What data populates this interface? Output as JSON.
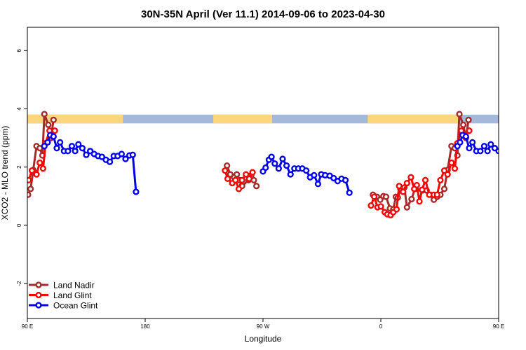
{
  "chart_data": {
    "type": "line",
    "title": "30N-35N April (Ver 11.1)   2014-09-06 to 2023-04-30",
    "xlabel": "Longitude",
    "ylabel": "XCO2 - MLO trend (ppm)",
    "xlim": [
      90,
      450
    ],
    "ylim": [
      -3.2,
      6.8
    ],
    "x_ticks": [
      {
        "value": 90,
        "label": "90 E"
      },
      {
        "value": 180,
        "label": "180"
      },
      {
        "value": 270,
        "label": "90 W"
      },
      {
        "value": 360,
        "label": "0"
      },
      {
        "value": 450,
        "label": "90 E"
      },
      {
        "value": 540,
        "label": "180"
      }
    ],
    "y_ticks": [
      {
        "value": -2,
        "label": "-2"
      },
      {
        "value": 0,
        "label": "0"
      },
      {
        "value": 2,
        "label": "2"
      },
      {
        "value": 4,
        "label": "4"
      },
      {
        "value": 6,
        "label": "6"
      }
    ],
    "grid": false,
    "legend_position": "bottom-left",
    "land_ocean_bar": {
      "y_range": [
        3.5,
        3.8
      ],
      "ocean_color": "#a4b9d9",
      "land_color": "#fcd57d",
      "land_segments": [
        [
          90,
          163
        ],
        [
          232,
          277
        ],
        [
          350,
          420
        ],
        [
          450,
          523
        ]
      ]
    },
    "series": [
      {
        "name": "Land Nadir",
        "color": "#a52a2a",
        "points": [
          [
            90.5,
            1.05
          ],
          [
            92.5,
            1.25
          ],
          [
            94.5,
            1.9
          ],
          [
            97,
            2.72
          ],
          [
            99.5,
            2.65
          ],
          [
            101.5,
            2.4
          ],
          [
            103,
            3.82
          ],
          [
            106,
            3.45
          ],
          [
            108,
            3.0
          ],
          [
            110,
            3.62
          ],
          [
            242.5,
            2.05
          ],
          [
            245,
            1.75
          ],
          [
            248,
            1.65
          ],
          [
            250,
            1.75
          ],
          [
            252,
            1.55
          ],
          [
            254,
            1.35
          ],
          [
            259,
            1.55
          ],
          [
            261,
            1.72
          ],
          [
            263,
            1.55
          ],
          [
            265,
            1.35
          ],
          [
            354,
            1.05
          ],
          [
            357,
            0.98
          ],
          [
            359.5,
            0.88
          ],
          [
            362,
            1.0
          ],
          [
            364,
            0.98
          ],
          [
            367,
            0.58
          ],
          [
            369.5,
            0.55
          ],
          [
            371.5,
            0.98
          ],
          [
            373,
            0.95
          ],
          [
            375,
            1.25
          ],
          [
            378,
            1.3
          ],
          [
            380,
            0.62
          ],
          [
            383.5,
            0.9
          ],
          [
            386,
            1.25
          ],
          [
            392,
            1.2
          ],
          [
            395,
            1.2
          ],
          [
            398,
            1.05
          ],
          [
            400.5,
            0.88
          ],
          [
            403,
            0.98
          ],
          [
            405.5,
            1.05
          ],
          [
            408.5,
            1.25
          ],
          [
            411,
            1.9
          ],
          [
            414,
            2.72
          ],
          [
            416.5,
            2.65
          ],
          [
            418.5,
            2.4
          ],
          [
            420,
            3.82
          ],
          [
            423,
            3.45
          ],
          [
            425,
            3.0
          ],
          [
            427,
            3.62
          ]
        ]
      },
      {
        "name": "Land Glint",
        "color": "#ff0000",
        "points": [
          [
            91,
            1.55
          ],
          [
            93.5,
            1.88
          ],
          [
            97,
            1.75
          ],
          [
            99.5,
            2.15
          ],
          [
            102,
            1.95
          ],
          [
            104,
            2.82
          ],
          [
            107,
            3.25
          ],
          [
            109.5,
            3.05
          ],
          [
            111,
            3.25
          ],
          [
            241,
            1.88
          ],
          [
            243,
            1.6
          ],
          [
            246.5,
            1.45
          ],
          [
            249,
            1.55
          ],
          [
            251.5,
            1.25
          ],
          [
            254,
            1.55
          ],
          [
            257,
            1.75
          ],
          [
            259.5,
            1.6
          ],
          [
            262,
            1.82
          ],
          [
            352.5,
            0.68
          ],
          [
            355,
            0.98
          ],
          [
            357.5,
            0.62
          ],
          [
            360,
            0.65
          ],
          [
            363,
            0.45
          ],
          [
            365,
            0.38
          ],
          [
            367.5,
            0.35
          ],
          [
            369.5,
            0.45
          ],
          [
            372,
            0.55
          ],
          [
            374,
            1.35
          ],
          [
            377,
            1.15
          ],
          [
            380,
            1.45
          ],
          [
            383,
            1.65
          ],
          [
            385.5,
            1.25
          ],
          [
            387.5,
            1.38
          ],
          [
            389.5,
            0.82
          ],
          [
            391.5,
            1.22
          ],
          [
            394,
            1.55
          ],
          [
            397,
            1.05
          ],
          [
            400.5,
            1.05
          ],
          [
            403,
            1.05
          ],
          [
            405.5,
            1.55
          ],
          [
            408.5,
            1.88
          ],
          [
            411,
            1.75
          ],
          [
            414,
            2.15
          ],
          [
            416.5,
            1.95
          ],
          [
            418.5,
            2.82
          ],
          [
            421.5,
            3.25
          ],
          [
            424.5,
            3.05
          ],
          [
            427.5,
            3.25
          ]
        ]
      },
      {
        "name": "Ocean Glint",
        "color": "#0000ee",
        "points": [
          [
            103,
            2.72
          ],
          [
            105.5,
            2.85
          ],
          [
            107.5,
            3.1
          ],
          [
            110,
            3.05
          ],
          [
            112.5,
            2.65
          ],
          [
            115,
            2.85
          ],
          [
            118,
            2.55
          ],
          [
            121,
            2.55
          ],
          [
            124,
            2.72
          ],
          [
            126.5,
            2.55
          ],
          [
            129,
            2.78
          ],
          [
            132,
            2.65
          ],
          [
            135,
            2.42
          ],
          [
            138,
            2.55
          ],
          [
            141,
            2.45
          ],
          [
            144,
            2.38
          ],
          [
            147,
            2.35
          ],
          [
            150,
            2.25
          ],
          [
            153,
            2.18
          ],
          [
            156,
            2.38
          ],
          [
            159,
            2.38
          ],
          [
            162,
            2.45
          ],
          [
            165,
            2.28
          ],
          [
            168,
            2.4
          ],
          [
            170.5,
            2.42
          ],
          [
            173,
            1.15
          ],
          [
            270,
            1.85
          ],
          [
            272,
            1.98
          ],
          [
            274.5,
            2.25
          ],
          [
            276.5,
            2.35
          ],
          [
            279,
            2.12
          ],
          [
            282,
            1.95
          ],
          [
            285,
            2.28
          ],
          [
            288,
            2.05
          ],
          [
            291,
            1.75
          ],
          [
            294,
            1.95
          ],
          [
            297,
            1.95
          ],
          [
            300,
            1.95
          ],
          [
            303,
            1.88
          ],
          [
            306,
            1.65
          ],
          [
            309,
            1.72
          ],
          [
            312,
            1.42
          ],
          [
            314.5,
            1.75
          ],
          [
            317.5,
            1.72
          ],
          [
            321,
            1.7
          ],
          [
            324,
            1.62
          ],
          [
            327,
            1.52
          ],
          [
            330,
            1.6
          ],
          [
            333,
            1.55
          ],
          [
            336,
            1.12
          ],
          [
            418.5,
            2.72
          ],
          [
            420.5,
            2.85
          ],
          [
            422.5,
            3.1
          ],
          [
            425,
            3.05
          ],
          [
            427.5,
            2.65
          ],
          [
            430,
            2.85
          ],
          [
            433,
            2.55
          ],
          [
            436,
            2.55
          ],
          [
            439,
            2.72
          ],
          [
            441.5,
            2.55
          ],
          [
            444,
            2.78
          ],
          [
            447,
            2.65
          ],
          [
            450,
            2.55
          ]
        ]
      }
    ]
  }
}
